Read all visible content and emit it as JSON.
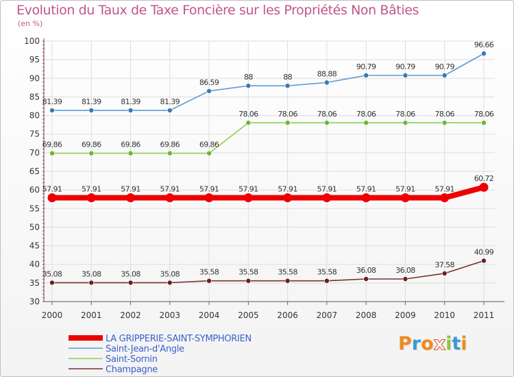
{
  "header": {
    "title": "Evolution du Taux de Taxe Foncière sur les Propriétés Non Bâties",
    "unit": "(en %)"
  },
  "logo": {
    "text": "Proxiti",
    "letters": [
      "P",
      "r",
      "o",
      "x",
      "i",
      "t",
      "i"
    ],
    "colors": [
      "#f08a1c",
      "#3a9ad9",
      "#f08a1c",
      "#ffffff",
      "#8cc63f",
      "#3a9ad9",
      "#f08a1c"
    ]
  },
  "chart_data": {
    "type": "line",
    "title": "Evolution du Taux de Taxe Foncière sur les Propriétés Non Bâties",
    "ylabel": "(en %)",
    "xlabel": "",
    "ylim": [
      30,
      100
    ],
    "yticks": [
      30,
      35,
      40,
      45,
      50,
      55,
      60,
      65,
      70,
      75,
      80,
      85,
      90,
      95,
      100
    ],
    "categories": [
      "2000",
      "2001",
      "2002",
      "2003",
      "2004",
      "2005",
      "2006",
      "2007",
      "2008",
      "2009",
      "2010",
      "2011"
    ],
    "series": [
      {
        "name": "LA GRIPPERIE-SAINT-SYMPHORIEN",
        "color": "#ee0000",
        "point_color": "#ee0000",
        "highlight": true,
        "values": [
          57.91,
          57.91,
          57.91,
          57.91,
          57.91,
          57.91,
          57.91,
          57.91,
          57.91,
          57.91,
          57.91,
          60.72
        ],
        "labels": [
          "57.91",
          "57.91",
          "57.91",
          "57.91",
          "57.91",
          "57.91",
          "57.91",
          "57.91",
          "57.91",
          "57.91",
          "57.91",
          "60.72"
        ]
      },
      {
        "name": "Saint-Jean-d'Angle",
        "color": "#5b9bd5",
        "point_color": "#3a78b5",
        "highlight": false,
        "values": [
          81.39,
          81.39,
          81.39,
          81.39,
          86.59,
          88,
          88,
          88.88,
          90.79,
          90.79,
          90.79,
          96.66
        ],
        "labels": [
          "81.39",
          "81.39",
          "81.39",
          "81.39",
          "86.59",
          "88",
          "88",
          "88.88",
          "90.79",
          "90.79",
          "90.79",
          "96.66"
        ]
      },
      {
        "name": "Saint-Sornin",
        "color": "#8fd14f",
        "point_color": "#6ab82f",
        "highlight": false,
        "values": [
          69.86,
          69.86,
          69.86,
          69.86,
          69.86,
          78.06,
          78.06,
          78.06,
          78.06,
          78.06,
          78.06,
          78.06
        ],
        "labels": [
          "69.86",
          "69.86",
          "69.86",
          "69.86",
          "69.86",
          "78.06",
          "78.06",
          "78.06",
          "78.06",
          "78.06",
          "78.06",
          "78.06"
        ]
      },
      {
        "name": "Champagne",
        "color": "#7a2e2e",
        "point_color": "#6a1e1e",
        "highlight": false,
        "values": [
          35.08,
          35.08,
          35.08,
          35.08,
          35.58,
          35.58,
          35.58,
          35.58,
          36.08,
          36.08,
          37.58,
          40.99
        ],
        "labels": [
          "35.08",
          "35.08",
          "35.08",
          "35.08",
          "35.58",
          "35.58",
          "35.58",
          "35.58",
          "36.08",
          "36.08",
          "37.58",
          "40.99"
        ]
      }
    ],
    "legend_color": "#3a5fcd",
    "grid": true
  }
}
